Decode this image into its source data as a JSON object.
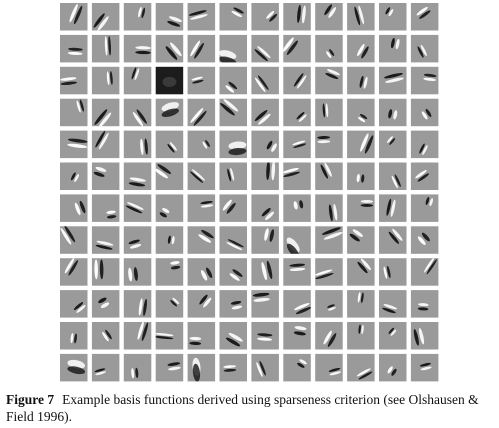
{
  "figure": {
    "label": "Figure 7",
    "caption": "Example basis functions derived using sparseness criterion (see Olshausen & Field 1996)."
  },
  "grid": {
    "rows": 12,
    "columns": 12,
    "background_color": "#9a9a9a",
    "light_color": "#ffffff",
    "dark_color": "#141414"
  }
}
